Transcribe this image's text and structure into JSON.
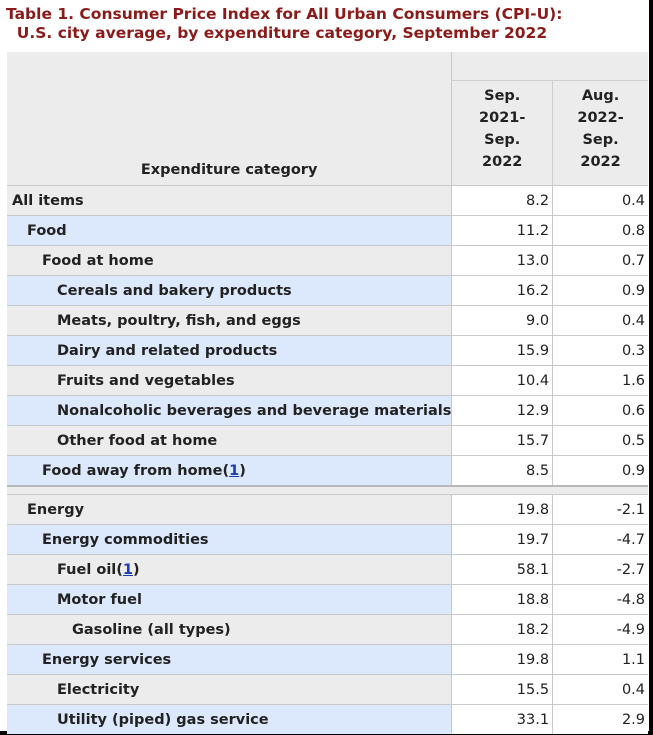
{
  "title": {
    "line1": "Table 1. Consumer Price Index for All Urban Consumers (CPI-U):",
    "line2": "  U.S. city average, by expenditure category, September 2022"
  },
  "table": {
    "category_header": "Expenditure category",
    "col1_header": [
      "Sep.",
      "2021-",
      "Sep.",
      "2022"
    ],
    "col2_header": [
      "Aug.",
      "2022-",
      "Sep.",
      "2022"
    ],
    "group1": [
      {
        "label": "All items",
        "level": 0,
        "c1": "8.2",
        "c2": "0.4"
      },
      {
        "label": "Food",
        "level": 1,
        "c1": "11.2",
        "c2": "0.8"
      },
      {
        "label": "Food at home",
        "level": 2,
        "c1": "13.0",
        "c2": "0.7"
      },
      {
        "label": "Cereals and bakery products",
        "level": 3,
        "c1": "16.2",
        "c2": "0.9"
      },
      {
        "label": "Meats, poultry, fish, and eggs",
        "level": 3,
        "c1": "9.0",
        "c2": "0.4"
      },
      {
        "label": "Dairy and related products",
        "level": 3,
        "c1": "15.9",
        "c2": "0.3"
      },
      {
        "label": "Fruits and vegetables",
        "level": 3,
        "c1": "10.4",
        "c2": "1.6"
      },
      {
        "label": "Nonalcoholic beverages and beverage materials",
        "level": 3,
        "c1": "12.9",
        "c2": "0.6"
      },
      {
        "label": "Other food at home",
        "level": 3,
        "c1": "15.7",
        "c2": "0.5"
      },
      {
        "label": "Food away from home",
        "level": 2,
        "c1": "8.5",
        "c2": "0.9",
        "footnote": "1"
      }
    ],
    "group2": [
      {
        "label": "Energy",
        "level": 1,
        "c1": "19.8",
        "c2": "-2.1"
      },
      {
        "label": "Energy commodities",
        "level": 2,
        "c1": "19.7",
        "c2": "-4.7"
      },
      {
        "label": "Fuel oil",
        "level": 3,
        "c1": "58.1",
        "c2": "-2.7",
        "footnote": "1"
      },
      {
        "label": "Motor fuel",
        "level": 3,
        "c1": "18.8",
        "c2": "-4.8"
      },
      {
        "label": "Gasoline (all types)",
        "level": 4,
        "c1": "18.2",
        "c2": "-4.9"
      },
      {
        "label": "Energy services",
        "level": 2,
        "c1": "19.8",
        "c2": "1.1"
      },
      {
        "label": "Electricity",
        "level": 3,
        "c1": "15.5",
        "c2": "0.4"
      },
      {
        "label": "Utility (piped) gas service",
        "level": 3,
        "c1": "33.1",
        "c2": "2.9"
      }
    ]
  }
}
